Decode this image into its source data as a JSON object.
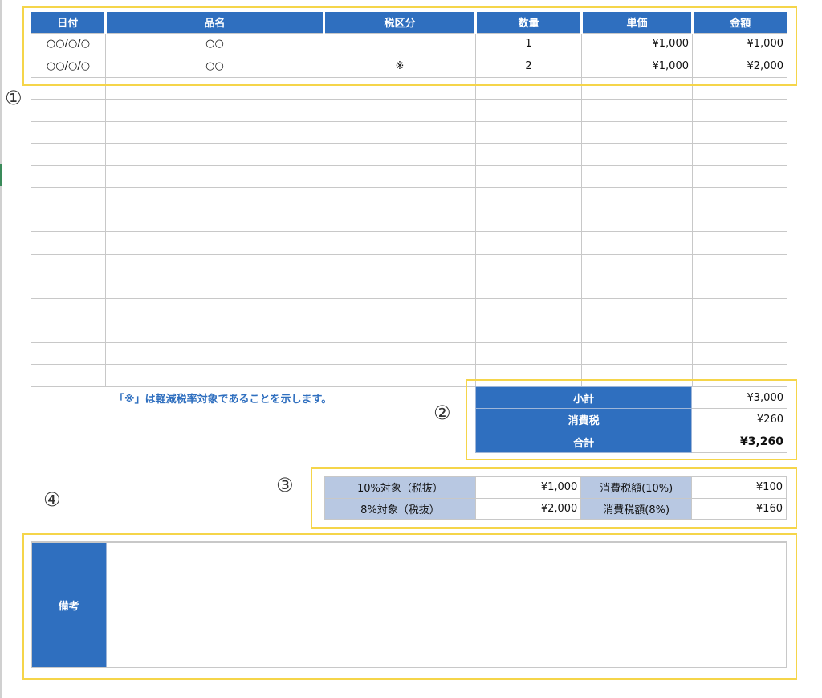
{
  "items_table": {
    "headers": [
      "日付",
      "品名",
      "税区分",
      "数量",
      "単価",
      "金額"
    ],
    "rows": [
      [
        "○○/○/○",
        "○○",
        "",
        "1",
        "¥1,000",
        "¥1,000"
      ],
      [
        "○○/○/○",
        "○○",
        "※",
        "2",
        "¥1,000",
        "¥2,000"
      ]
    ],
    "empty_row_count": 14
  },
  "note": "「※」は軽減税率対象であることを示します。",
  "summary": {
    "subtotal_label": "小計",
    "subtotal": "¥3,000",
    "tax_label": "消費税",
    "tax": "¥260",
    "total_label": "合計",
    "total": "¥3,260"
  },
  "tax_breakdown": {
    "row10": {
      "label": "10%対象（税抜）",
      "amount": "¥1,000",
      "tax_label": "消費税額(10%)",
      "tax": "¥100"
    },
    "row8": {
      "label": "8%対象（税抜）",
      "amount": "¥2,000",
      "tax_label": "消費税額(8%)",
      "tax": "¥160"
    }
  },
  "remarks": {
    "label": "備考",
    "value": ""
  },
  "markers": [
    "①",
    "②",
    "③",
    "④"
  ],
  "colors": {
    "header_blue": "#2f6fbf",
    "label_light_blue": "#b8c8e2",
    "highlight_yellow": "#f5d54a",
    "note_blue": "#2f6fbf"
  }
}
